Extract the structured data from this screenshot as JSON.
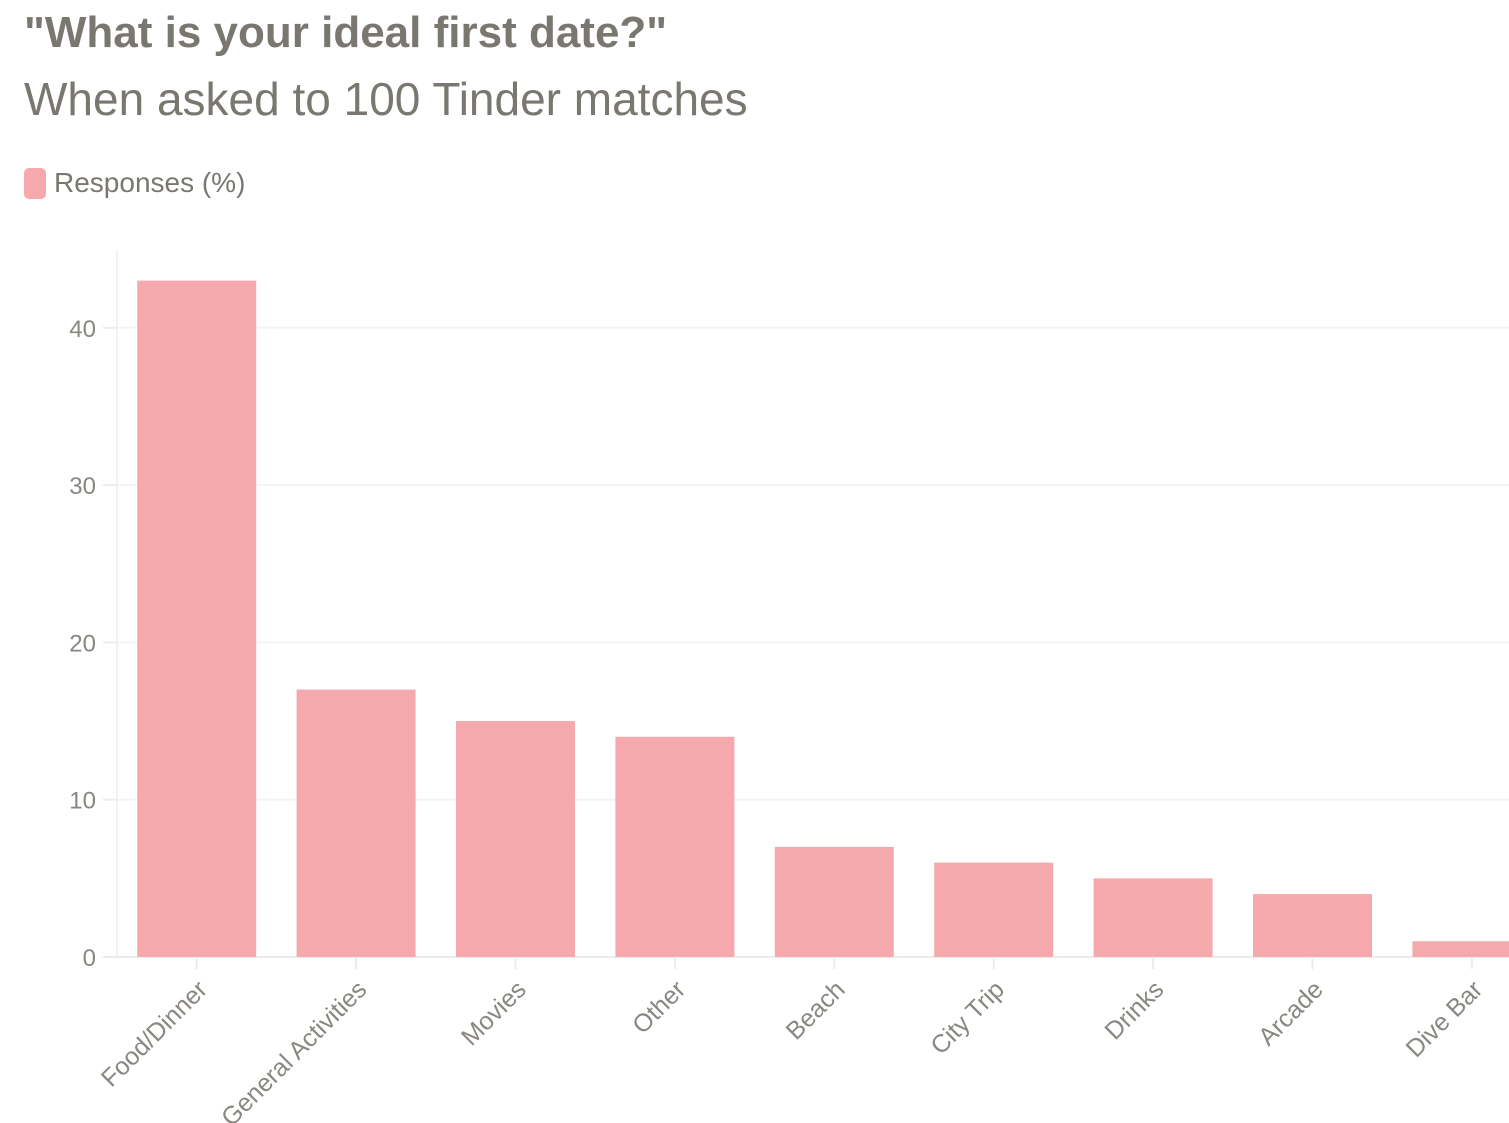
{
  "chart_data": {
    "type": "bar",
    "title": "\"What is your ideal first date?\"",
    "subtitle": "When asked to 100 Tinder matches",
    "xlabel": "",
    "ylabel": "",
    "categories": [
      "Food/Dinner",
      "General Activities",
      "Movies",
      "Other",
      "Beach",
      "City Trip",
      "Drinks",
      "Arcade",
      "Dive Bar"
    ],
    "series": [
      {
        "name": "Responses (%)",
        "values": [
          43,
          17,
          15,
          14,
          7,
          6,
          5,
          4,
          1
        ],
        "color": "#f6a9ac"
      }
    ],
    "y_ticks": [
      "0",
      "10",
      "20",
      "30",
      "40"
    ],
    "ylim": [
      0,
      45
    ],
    "grid": true,
    "legend": "top-left"
  }
}
